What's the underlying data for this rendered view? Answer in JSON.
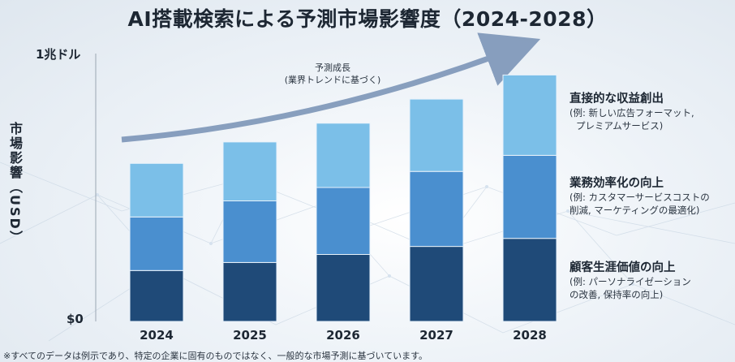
{
  "chart_data": {
    "type": "bar",
    "stacked": true,
    "title": "AI搭載検索による予測市場影響度（2024-2028）",
    "ylabel": "市場影響（USD）",
    "ylim": [
      0,
      1
    ],
    "yticks": [
      "$0",
      "1兆ドル"
    ],
    "categories": [
      "2024",
      "2025",
      "2026",
      "2027",
      "2028"
    ],
    "series": [
      {
        "name": "顧客生涯価値の向上",
        "description": [
          "(例: パーソナライゼーション",
          "の改善, 保持率の向上)"
        ],
        "color": "#1f4a78",
        "values": [
          0.19,
          0.22,
          0.25,
          0.28,
          0.31
        ]
      },
      {
        "name": "業務効率化の向上",
        "description": [
          "(例: カスタマーサービスコストの",
          "削減, マーケティングの最適化)"
        ],
        "color": "#4a8fcf",
        "values": [
          0.2,
          0.23,
          0.25,
          0.28,
          0.31
        ]
      },
      {
        "name": "直接的な収益創出",
        "description": [
          "(例: 新しい広告フォーマット,",
          "プレミアムサービス)"
        ],
        "color": "#7bbfe8",
        "values": [
          0.2,
          0.22,
          0.24,
          0.27,
          0.3
        ]
      }
    ],
    "annotation": {
      "text": [
        "予測成長",
        "(業界トレンドに基づく)"
      ]
    },
    "grid": false
  },
  "footnote": "※すべてのデータは例示であり、特定の企業に固有のものではなく、一般的な市場予測に基づいています。"
}
